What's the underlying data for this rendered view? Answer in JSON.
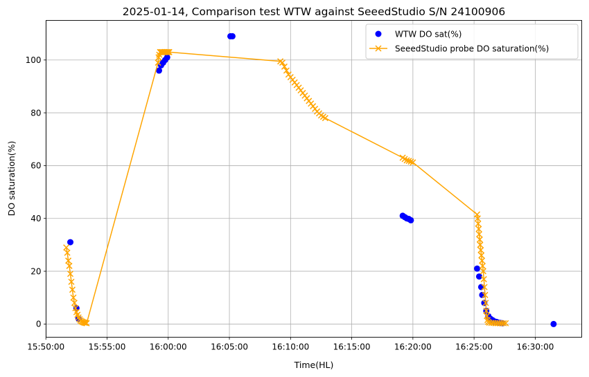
{
  "chart_data": {
    "type": "scatter",
    "title": "2025-01-14, Comparison test WTW against SeeedStudio S/N 24100906",
    "xlabel": "Time(HL)",
    "ylabel": "DO saturation(%)",
    "xlim": [
      "15:50:01",
      "16:33:48"
    ],
    "ylim": [
      -5,
      115
    ],
    "xticks": [
      "15:50:00",
      "15:55:00",
      "16:00:00",
      "16:05:00",
      "16:10:00",
      "16:15:00",
      "16:20:00",
      "16:25:00",
      "16:30:00"
    ],
    "yticks": [
      0,
      20,
      40,
      60,
      80,
      100
    ],
    "grid": true,
    "legend_position": "top-right",
    "series": [
      {
        "name": "WTW DO sat(%)",
        "kind": "scatter",
        "color": "#0000ff",
        "points": [
          [
            "15:52:00",
            31
          ],
          [
            "15:52:30",
            6
          ],
          [
            "15:52:40",
            2
          ],
          [
            "15:59:15",
            96
          ],
          [
            "15:59:25",
            98
          ],
          [
            "15:59:35",
            99
          ],
          [
            "15:59:45",
            100
          ],
          [
            "15:59:55",
            101
          ],
          [
            "16:05:05",
            109
          ],
          [
            "16:05:15",
            109
          ],
          [
            "16:19:10",
            41
          ],
          [
            "16:19:20",
            40.5
          ],
          [
            "16:19:30",
            40
          ],
          [
            "16:19:40",
            39.8
          ],
          [
            "16:19:50",
            39.3
          ],
          [
            "16:25:15",
            21
          ],
          [
            "16:25:25",
            18
          ],
          [
            "16:25:35",
            14
          ],
          [
            "16:25:40",
            11
          ],
          [
            "16:25:50",
            8
          ],
          [
            "16:26:00",
            5
          ],
          [
            "16:26:10",
            3
          ],
          [
            "16:26:20",
            2
          ],
          [
            "16:26:30",
            1.5
          ],
          [
            "16:26:40",
            1
          ],
          [
            "16:26:50",
            0.8
          ],
          [
            "16:27:00",
            0.5
          ],
          [
            "16:27:10",
            0.4
          ],
          [
            "16:27:20",
            0.3
          ],
          [
            "16:31:30",
            0
          ]
        ]
      },
      {
        "name": "SeeedStudio probe DO saturation(%)",
        "kind": "line",
        "marker": "x",
        "color": "#ffa500",
        "points": [
          [
            "15:51:40",
            29
          ],
          [
            "15:51:45",
            27
          ],
          [
            "15:51:50",
            24
          ],
          [
            "15:51:55",
            22
          ],
          [
            "15:52:00",
            19
          ],
          [
            "15:52:05",
            16
          ],
          [
            "15:52:10",
            13
          ],
          [
            "15:52:15",
            10
          ],
          [
            "15:52:20",
            8
          ],
          [
            "15:52:25",
            6
          ],
          [
            "15:52:30",
            4.5
          ],
          [
            "15:52:35",
            3.5
          ],
          [
            "15:52:40",
            2.5
          ],
          [
            "15:52:45",
            1.8
          ],
          [
            "15:52:50",
            1.3
          ],
          [
            "15:52:55",
            1
          ],
          [
            "15:53:00",
            0.8
          ],
          [
            "15:53:05",
            0.6
          ],
          [
            "15:53:10",
            0.5
          ],
          [
            "15:53:15",
            0.4
          ],
          [
            "15:53:20",
            0.3
          ],
          [
            "15:59:10",
            99
          ],
          [
            "15:59:13",
            101
          ],
          [
            "15:59:16",
            102
          ],
          [
            "15:59:20",
            103
          ],
          [
            "15:59:25",
            103
          ],
          [
            "15:59:30",
            103
          ],
          [
            "15:59:35",
            103
          ],
          [
            "15:59:40",
            103
          ],
          [
            "15:59:45",
            103
          ],
          [
            "15:59:50",
            103
          ],
          [
            "15:59:55",
            103
          ],
          [
            "16:00:00",
            103
          ],
          [
            "16:00:05",
            103
          ],
          [
            "16:09:10",
            99.5
          ],
          [
            "16:09:20",
            99
          ],
          [
            "16:09:30",
            97.5
          ],
          [
            "16:09:40",
            96
          ],
          [
            "16:09:50",
            94.5
          ],
          [
            "16:10:00",
            93.5
          ],
          [
            "16:10:10",
            92.5
          ],
          [
            "16:10:20",
            91.5
          ],
          [
            "16:10:30",
            90.5
          ],
          [
            "16:10:40",
            89.5
          ],
          [
            "16:10:50",
            88.5
          ],
          [
            "16:11:00",
            87.5
          ],
          [
            "16:11:10",
            86.5
          ],
          [
            "16:11:20",
            85.5
          ],
          [
            "16:11:30",
            84.5
          ],
          [
            "16:11:40",
            83.5
          ],
          [
            "16:11:50",
            82.5
          ],
          [
            "16:12:00",
            81.5
          ],
          [
            "16:12:10",
            80.5
          ],
          [
            "16:12:20",
            79.8
          ],
          [
            "16:12:30",
            79
          ],
          [
            "16:12:40",
            78.5
          ],
          [
            "16:12:50",
            78
          ],
          [
            "16:19:10",
            63
          ],
          [
            "16:19:20",
            62.5
          ],
          [
            "16:19:30",
            62
          ],
          [
            "16:19:40",
            61.8
          ],
          [
            "16:19:50",
            61.5
          ],
          [
            "16:20:00",
            61.2
          ],
          [
            "16:25:15",
            41.5
          ],
          [
            "16:25:18",
            40
          ],
          [
            "16:25:20",
            38
          ],
          [
            "16:25:23",
            36
          ],
          [
            "16:25:25",
            34
          ],
          [
            "16:25:28",
            32
          ],
          [
            "16:25:30",
            30
          ],
          [
            "16:25:33",
            28
          ],
          [
            "16:25:36",
            26
          ],
          [
            "16:25:39",
            24
          ],
          [
            "16:25:42",
            22
          ],
          [
            "16:25:45",
            20
          ],
          [
            "16:25:48",
            17
          ],
          [
            "16:25:51",
            14
          ],
          [
            "16:25:54",
            11
          ],
          [
            "16:25:57",
            8
          ],
          [
            "16:26:00",
            5
          ],
          [
            "16:26:03",
            3
          ],
          [
            "16:26:06",
            1.5
          ],
          [
            "16:26:09",
            0.8
          ],
          [
            "16:26:15",
            0.5
          ],
          [
            "16:26:25",
            0.4
          ],
          [
            "16:26:35",
            0.4
          ],
          [
            "16:26:45",
            0.3
          ],
          [
            "16:26:55",
            0.3
          ],
          [
            "16:27:05",
            0.3
          ],
          [
            "16:27:15",
            0.3
          ],
          [
            "16:27:25",
            0.3
          ],
          [
            "16:27:35",
            0.3
          ]
        ]
      }
    ]
  }
}
